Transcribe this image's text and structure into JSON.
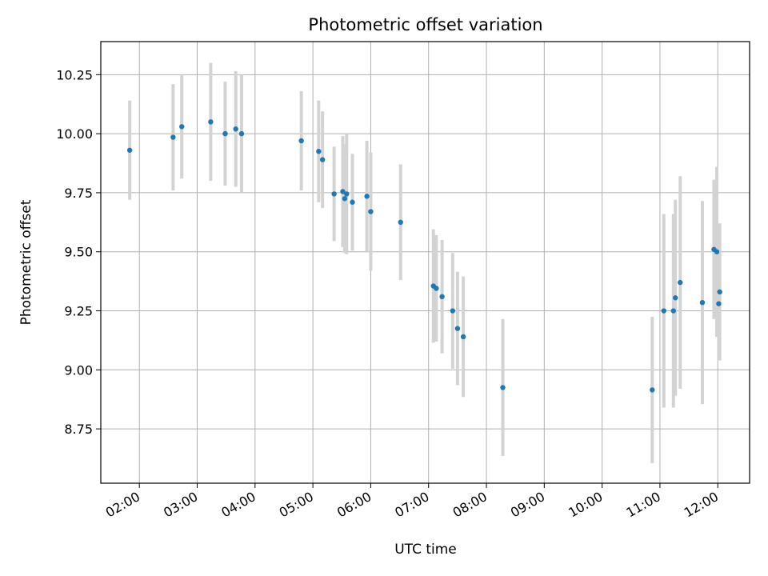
{
  "chart_data": {
    "type": "scatter",
    "title": "Photometric offset variation",
    "xlabel": "UTC time",
    "ylabel": "Photometric offset",
    "x_tick_labels": [
      "02:00",
      "03:00",
      "04:00",
      "05:00",
      "06:00",
      "07:00",
      "08:00",
      "09:00",
      "10:00",
      "11:00",
      "12:00"
    ],
    "y_tick_labels": [
      "8.75",
      "9.00",
      "9.25",
      "9.50",
      "9.75",
      "10.00",
      "10.25"
    ],
    "xlim": [
      "01:20",
      "12:33"
    ],
    "ylim": [
      8.52,
      10.39
    ],
    "grid": true,
    "colors": {
      "marker": "#1f77b4",
      "errorbar": "#d3d3d3",
      "grid": "#b0b0b0"
    },
    "points": [
      {
        "x": "01:50",
        "y": 9.93,
        "err": 0.21
      },
      {
        "x": "02:35",
        "y": 9.985,
        "err": 0.225
      },
      {
        "x": "02:44",
        "y": 10.03,
        "err": 0.22
      },
      {
        "x": "03:14",
        "y": 10.05,
        "err": 0.25
      },
      {
        "x": "03:29",
        "y": 10.0,
        "err": 0.22
      },
      {
        "x": "03:40",
        "y": 10.02,
        "err": 0.245
      },
      {
        "x": "03:46",
        "y": 10.0,
        "err": 0.25
      },
      {
        "x": "04:48",
        "y": 9.97,
        "err": 0.21
      },
      {
        "x": "05:06",
        "y": 9.925,
        "err": 0.215
      },
      {
        "x": "05:10",
        "y": 9.89,
        "err": 0.205
      },
      {
        "x": "05:22",
        "y": 9.745,
        "err": 0.2
      },
      {
        "x": "05:31",
        "y": 9.755,
        "err": 0.235
      },
      {
        "x": "05:33",
        "y": 9.725,
        "err": 0.23
      },
      {
        "x": "05:35",
        "y": 9.745,
        "err": 0.255
      },
      {
        "x": "05:41",
        "y": 9.71,
        "err": 0.205
      },
      {
        "x": "05:56",
        "y": 9.735,
        "err": 0.235
      },
      {
        "x": "06:00",
        "y": 9.67,
        "err": 0.25
      },
      {
        "x": "06:31",
        "y": 9.625,
        "err": 0.245
      },
      {
        "x": "07:05",
        "y": 9.355,
        "err": 0.24
      },
      {
        "x": "07:08",
        "y": 9.345,
        "err": 0.225
      },
      {
        "x": "07:14",
        "y": 9.31,
        "err": 0.24
      },
      {
        "x": "07:25",
        "y": 9.25,
        "err": 0.245
      },
      {
        "x": "07:30",
        "y": 9.175,
        "err": 0.24
      },
      {
        "x": "07:36",
        "y": 9.14,
        "err": 0.255
      },
      {
        "x": "08:17",
        "y": 8.925,
        "err": 0.29
      },
      {
        "x": "10:52",
        "y": 8.915,
        "err": 0.31
      },
      {
        "x": "11:04",
        "y": 9.25,
        "err": 0.41
      },
      {
        "x": "11:14",
        "y": 9.25,
        "err": 0.41
      },
      {
        "x": "11:16",
        "y": 9.305,
        "err": 0.415
      },
      {
        "x": "11:21",
        "y": 9.37,
        "err": 0.45
      },
      {
        "x": "11:44",
        "y": 9.285,
        "err": 0.43
      },
      {
        "x": "11:56",
        "y": 9.51,
        "err": 0.295
      },
      {
        "x": "11:59",
        "y": 9.5,
        "err": 0.36
      },
      {
        "x": "12:01",
        "y": 9.28,
        "err": 0.24
      },
      {
        "x": "12:02",
        "y": 9.33,
        "err": 0.29
      }
    ]
  }
}
